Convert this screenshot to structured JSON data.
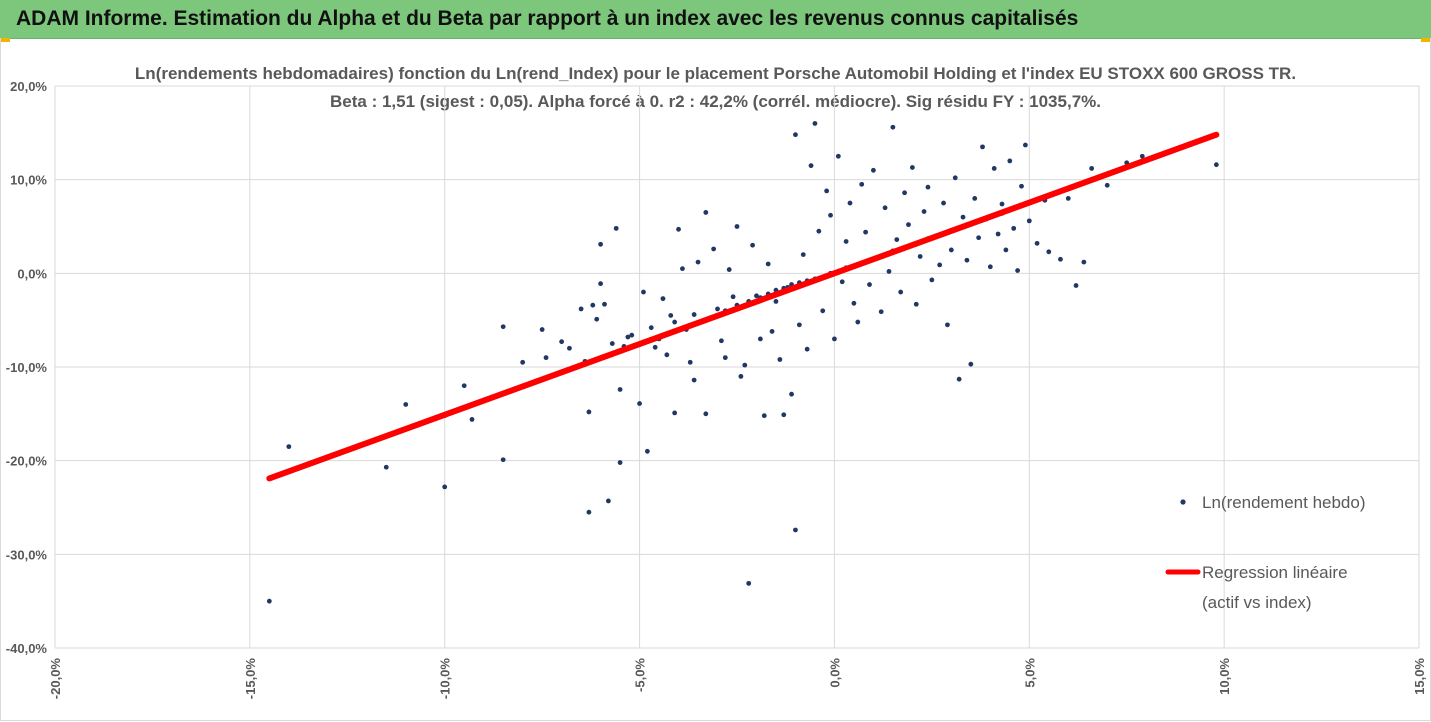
{
  "header": {
    "title": "ADAM Informe. Estimation du Alpha et du Beta par rapport à un index avec les revenus connus capitalisés"
  },
  "colors": {
    "banner": "#7dc77d",
    "points": "#203864",
    "regression": "#ff0000",
    "grid": "#d9d9d9",
    "text": "#595959",
    "corner_accent": "#f2b400"
  },
  "chart_data": {
    "type": "scatter",
    "title": "Ln(rendements hebdomadaires) fonction du Ln(rend_Index) pour le placement Porsche Automobil Holding et l'index EU STOXX 600 GROSS TR.",
    "subtitle": "Beta : 1,51 (sigest : 0,05). Alpha forcé à 0. r2 : 42,2% (corrél. médiocre). Sig résidu FY : 1035,7%.",
    "xlabel": "",
    "ylabel": "",
    "xlim": [
      -0.2,
      0.15
    ],
    "ylim": [
      -0.4,
      0.2
    ],
    "x_ticks": [
      -0.2,
      -0.15,
      -0.1,
      -0.05,
      0.0,
      0.05,
      0.1,
      0.15
    ],
    "y_ticks": [
      -0.4,
      -0.3,
      -0.2,
      -0.1,
      0.0,
      0.1,
      0.2
    ],
    "x_tick_labels": [
      "-20,0%",
      "-15,0%",
      "-10,0%",
      "-5,0%",
      "0,0%",
      "5,0%",
      "10,0%",
      "15,0%"
    ],
    "y_tick_labels": [
      "-40,0%",
      "-30,0%",
      "-20,0%",
      "-10,0%",
      "0,0%",
      "10,0%",
      "20,0%"
    ],
    "grid": true,
    "legend_position": "right",
    "series": [
      {
        "name": "Ln(rendement hebdo)",
        "kind": "scatter",
        "color": "#203864",
        "points": [
          [
            -0.145,
            -0.35
          ],
          [
            -0.14,
            -0.185
          ],
          [
            -0.115,
            -0.207
          ],
          [
            -0.1,
            -0.228
          ],
          [
            -0.1,
            -0.152
          ],
          [
            -0.093,
            -0.156
          ],
          [
            -0.085,
            -0.057
          ],
          [
            -0.085,
            -0.199
          ],
          [
            -0.075,
            -0.06
          ],
          [
            -0.074,
            -0.09
          ],
          [
            -0.07,
            -0.073
          ],
          [
            -0.065,
            -0.038
          ],
          [
            -0.064,
            -0.094
          ],
          [
            -0.063,
            -0.148
          ],
          [
            -0.063,
            -0.255
          ],
          [
            -0.062,
            -0.034
          ],
          [
            -0.061,
            -0.049
          ],
          [
            -0.06,
            0.031
          ],
          [
            -0.06,
            -0.011
          ],
          [
            -0.059,
            -0.033
          ],
          [
            -0.058,
            -0.243
          ],
          [
            -0.057,
            -0.075
          ],
          [
            -0.056,
            0.048
          ],
          [
            -0.055,
            -0.202
          ],
          [
            -0.055,
            -0.124
          ],
          [
            -0.054,
            -0.078
          ],
          [
            -0.053,
            -0.068
          ],
          [
            -0.05,
            -0.139
          ],
          [
            -0.049,
            -0.02
          ],
          [
            -0.048,
            -0.19
          ],
          [
            -0.046,
            -0.079
          ],
          [
            -0.045,
            -0.07
          ],
          [
            -0.044,
            -0.027
          ],
          [
            -0.043,
            -0.087
          ],
          [
            -0.042,
            -0.045
          ],
          [
            -0.041,
            -0.149
          ],
          [
            -0.04,
            0.047
          ],
          [
            -0.039,
            0.005
          ],
          [
            -0.038,
            -0.06
          ],
          [
            -0.037,
            -0.095
          ],
          [
            -0.036,
            -0.114
          ],
          [
            -0.035,
            0.012
          ],
          [
            -0.034,
            -0.052
          ],
          [
            -0.033,
            -0.15
          ],
          [
            -0.033,
            0.065
          ],
          [
            -0.031,
            0.026
          ],
          [
            -0.03,
            -0.038
          ],
          [
            -0.029,
            -0.072
          ],
          [
            -0.028,
            -0.09
          ],
          [
            -0.027,
            0.004
          ],
          [
            -0.026,
            -0.025
          ],
          [
            -0.025,
            0.05
          ],
          [
            -0.024,
            -0.11
          ],
          [
            -0.023,
            -0.098
          ],
          [
            -0.022,
            -0.331
          ],
          [
            -0.021,
            0.03
          ],
          [
            -0.02,
            -0.024
          ],
          [
            -0.019,
            -0.07
          ],
          [
            -0.018,
            -0.152
          ],
          [
            -0.017,
            0.01
          ],
          [
            -0.016,
            -0.062
          ],
          [
            -0.015,
            -0.03
          ],
          [
            -0.014,
            -0.092
          ],
          [
            -0.013,
            -0.151
          ],
          [
            -0.012,
            -0.015
          ],
          [
            -0.011,
            -0.129
          ],
          [
            -0.01,
            -0.274
          ],
          [
            -0.01,
            0.148
          ],
          [
            -0.009,
            -0.055
          ],
          [
            -0.008,
            0.02
          ],
          [
            -0.007,
            -0.081
          ],
          [
            -0.006,
            0.115
          ],
          [
            -0.005,
            0.16
          ],
          [
            -0.004,
            0.045
          ],
          [
            -0.003,
            -0.04
          ],
          [
            -0.002,
            0.088
          ],
          [
            -0.001,
            0.062
          ],
          [
            0.0,
            -0.07
          ],
          [
            0.001,
            0.125
          ],
          [
            0.002,
            -0.009
          ],
          [
            0.003,
            0.034
          ],
          [
            0.004,
            0.075
          ],
          [
            0.005,
            -0.032
          ],
          [
            0.006,
            -0.052
          ],
          [
            0.007,
            0.095
          ],
          [
            0.008,
            0.044
          ],
          [
            0.009,
            -0.012
          ],
          [
            0.01,
            0.11
          ],
          [
            0.011,
            0.017
          ],
          [
            0.012,
            -0.041
          ],
          [
            0.013,
            0.07
          ],
          [
            0.014,
            0.002
          ],
          [
            0.015,
            0.156
          ],
          [
            0.016,
            0.036
          ],
          [
            0.017,
            -0.02
          ],
          [
            0.018,
            0.086
          ],
          [
            0.019,
            0.052
          ],
          [
            0.02,
            0.113
          ],
          [
            0.021,
            -0.033
          ],
          [
            0.022,
            0.018
          ],
          [
            0.023,
            0.066
          ],
          [
            0.024,
            0.092
          ],
          [
            0.025,
            -0.007
          ],
          [
            0.026,
            0.04
          ],
          [
            0.027,
            0.009
          ],
          [
            0.028,
            0.075
          ],
          [
            0.029,
            -0.055
          ],
          [
            0.03,
            0.025
          ],
          [
            0.031,
            0.102
          ],
          [
            0.032,
            -0.113
          ],
          [
            0.033,
            0.06
          ],
          [
            0.034,
            0.014
          ],
          [
            0.035,
            -0.097
          ],
          [
            0.036,
            0.08
          ],
          [
            0.037,
            0.038
          ],
          [
            0.038,
            0.135
          ],
          [
            0.039,
            0.058
          ],
          [
            0.04,
            0.007
          ],
          [
            0.041,
            0.112
          ],
          [
            0.042,
            0.042
          ],
          [
            0.043,
            0.074
          ],
          [
            0.044,
            0.025
          ],
          [
            0.045,
            0.12
          ],
          [
            0.046,
            0.048
          ],
          [
            0.047,
            0.003
          ],
          [
            0.048,
            0.093
          ],
          [
            0.049,
            0.137
          ],
          [
            0.05,
            0.056
          ],
          [
            0.052,
            0.032
          ],
          [
            0.054,
            0.078
          ],
          [
            0.055,
            0.023
          ],
          [
            0.058,
            0.015
          ],
          [
            0.06,
            0.08
          ],
          [
            0.062,
            -0.013
          ],
          [
            0.064,
            0.012
          ],
          [
            0.066,
            0.112
          ],
          [
            0.07,
            0.094
          ],
          [
            0.075,
            0.118
          ],
          [
            0.079,
            0.125
          ],
          [
            0.098,
            0.116
          ],
          [
            -0.11,
            -0.14
          ],
          [
            -0.095,
            -0.12
          ],
          [
            -0.08,
            -0.095
          ],
          [
            -0.068,
            -0.08
          ],
          [
            -0.052,
            -0.066
          ],
          [
            -0.047,
            -0.058
          ],
          [
            -0.041,
            -0.052
          ],
          [
            -0.036,
            -0.044
          ],
          [
            -0.032,
            -0.048
          ],
          [
            -0.028,
            -0.04
          ],
          [
            -0.025,
            -0.034
          ],
          [
            -0.022,
            -0.03
          ],
          [
            -0.019,
            -0.026
          ],
          [
            -0.017,
            -0.022
          ],
          [
            -0.015,
            -0.018
          ],
          [
            -0.013,
            -0.016
          ],
          [
            -0.011,
            -0.012
          ],
          [
            -0.009,
            -0.01
          ],
          [
            -0.007,
            -0.008
          ],
          [
            -0.005,
            -0.006
          ],
          [
            -0.003,
            -0.004
          ],
          [
            -0.001,
            0.0
          ],
          [
            0.001,
            0.002
          ],
          [
            0.003,
            0.006
          ],
          [
            0.005,
            0.008
          ],
          [
            0.007,
            0.011
          ],
          [
            0.009,
            0.013
          ],
          [
            0.011,
            0.016
          ],
          [
            0.013,
            0.02
          ],
          [
            0.015,
            0.024
          ],
          [
            0.018,
            0.027
          ],
          [
            0.021,
            0.031
          ],
          [
            0.024,
            0.037
          ],
          [
            0.027,
            0.041
          ],
          [
            0.03,
            0.046
          ],
          [
            0.034,
            0.052
          ],
          [
            0.038,
            0.057
          ],
          [
            0.043,
            0.064
          ],
          [
            0.048,
            0.072
          ],
          [
            0.053,
            0.08
          ]
        ]
      },
      {
        "name": "Regression linéaire (actif vs index)",
        "kind": "line",
        "color": "#ff0000",
        "slope": 1.51,
        "intercept": 0,
        "x_range": [
          -0.145,
          0.098
        ]
      }
    ],
    "legend": {
      "scatter_label": "Ln(rendement hebdo)",
      "line_label_1": "Regression linéaire",
      "line_label_2": "(actif vs index)"
    }
  }
}
